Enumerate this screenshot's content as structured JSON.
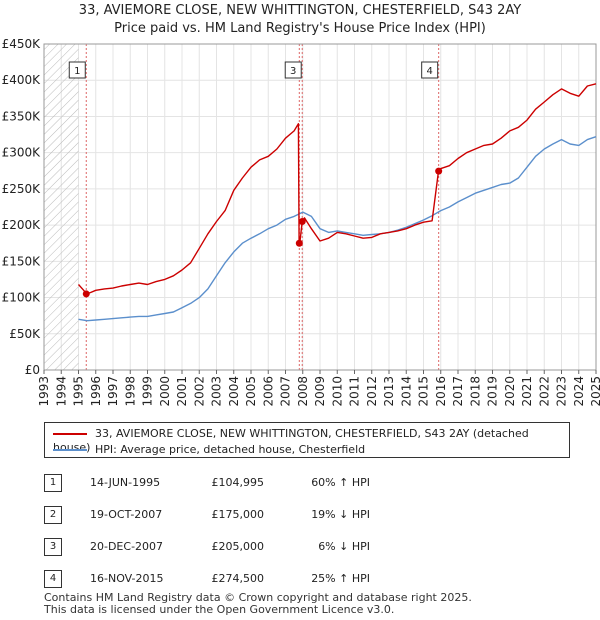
{
  "title_line1": "33, AVIEMORE CLOSE, NEW WHITTINGTON, CHESTERFIELD, S43 2AY",
  "title_line2": "Price paid vs. HM Land Registry's House Price Index (HPI)",
  "colors": {
    "property": "#cc0000",
    "hpi": "#5b8fcc",
    "hatch": "#bbbbbb",
    "vline": "#dd6666"
  },
  "chart_data": {
    "type": "line",
    "xlim": [
      1993,
      2025
    ],
    "ylim": [
      0,
      450000
    ],
    "y_ticks": [
      0,
      50000,
      100000,
      150000,
      200000,
      250000,
      300000,
      350000,
      400000,
      450000
    ],
    "y_tick_labels": [
      "£0",
      "£50K",
      "£100K",
      "£150K",
      "£200K",
      "£250K",
      "£300K",
      "£350K",
      "£400K",
      "£450K"
    ],
    "x_ticks": [
      1993,
      1994,
      1995,
      1996,
      1997,
      1998,
      1999,
      2000,
      2001,
      2002,
      2003,
      2004,
      2005,
      2006,
      2007,
      2008,
      2009,
      2010,
      2011,
      2012,
      2013,
      2014,
      2015,
      2016,
      2017,
      2018,
      2019,
      2020,
      2021,
      2022,
      2023,
      2024,
      2025
    ],
    "x_tick_labels": [
      "1993",
      "1994",
      "1995",
      "1996",
      "1997",
      "1998",
      "1999",
      "2000",
      "2001",
      "2002",
      "2003",
      "2004",
      "2005",
      "2006",
      "2007",
      "2008",
      "2009",
      "2010",
      "2011",
      "2012",
      "2013",
      "2014",
      "2015",
      "2016",
      "2017",
      "2018",
      "2019",
      "2020",
      "2021",
      "2022",
      "2023",
      "2024",
      "2025"
    ],
    "hatched_until": 1995.0,
    "series": [
      {
        "name": "33, AVIEMORE CLOSE, NEW WHITTINGTON, CHESTERFIELD, S43 2AY (detached house)",
        "x": [
          1995.0,
          1995.3,
          1995.45,
          1995.7,
          1996.0,
          1996.5,
          1997.0,
          1997.5,
          1998.0,
          1998.5,
          1999.0,
          1999.5,
          2000.0,
          2000.5,
          2001.0,
          2001.5,
          2002.0,
          2002.5,
          2003.0,
          2003.5,
          2004.0,
          2004.5,
          2005.0,
          2005.5,
          2006.0,
          2006.5,
          2007.0,
          2007.5,
          2007.75,
          2007.79,
          2007.85,
          2007.97,
          2008.1,
          2008.5,
          2009.0,
          2009.5,
          2010.0,
          2010.5,
          2011.0,
          2011.5,
          2012.0,
          2012.5,
          2013.0,
          2013.5,
          2014.0,
          2014.5,
          2015.0,
          2015.5,
          2015.87,
          2015.9,
          2016.0,
          2016.5,
          2017.0,
          2017.5,
          2018.0,
          2018.5,
          2019.0,
          2019.5,
          2020.0,
          2020.5,
          2021.0,
          2021.5,
          2022.0,
          2022.5,
          2023.0,
          2023.5,
          2024.0,
          2024.5,
          2025.0
        ],
        "y": [
          118000,
          110000,
          104995,
          107000,
          110000,
          112000,
          113000,
          116000,
          118000,
          120000,
          118000,
          122000,
          125000,
          130000,
          138000,
          148000,
          168000,
          188000,
          205000,
          220000,
          248000,
          265000,
          280000,
          290000,
          295000,
          305000,
          320000,
          330000,
          340000,
          175000,
          180000,
          205000,
          210000,
          195000,
          178000,
          182000,
          190000,
          188000,
          185000,
          182000,
          183000,
          188000,
          190000,
          192000,
          195000,
          200000,
          204000,
          206000,
          274500,
          276000,
          278000,
          282000,
          292000,
          300000,
          305000,
          310000,
          312000,
          320000,
          330000,
          335000,
          345000,
          360000,
          370000,
          380000,
          388000,
          382000,
          378000,
          392000,
          395000
        ]
      },
      {
        "name": "HPI: Average price, detached house, Chesterfield",
        "x": [
          1995.0,
          1995.5,
          1996.0,
          1996.5,
          1997.0,
          1997.5,
          1998.0,
          1998.5,
          1999.0,
          1999.5,
          2000.0,
          2000.5,
          2001.0,
          2001.5,
          2002.0,
          2002.5,
          2003.0,
          2003.5,
          2004.0,
          2004.5,
          2005.0,
          2005.5,
          2006.0,
          2006.5,
          2007.0,
          2007.5,
          2008.0,
          2008.5,
          2009.0,
          2009.5,
          2010.0,
          2010.5,
          2011.0,
          2011.5,
          2012.0,
          2012.5,
          2013.0,
          2013.5,
          2014.0,
          2014.5,
          2015.0,
          2015.5,
          2016.0,
          2016.5,
          2017.0,
          2017.5,
          2018.0,
          2018.5,
          2019.0,
          2019.5,
          2020.0,
          2020.5,
          2021.0,
          2021.5,
          2022.0,
          2022.5,
          2023.0,
          2023.5,
          2024.0,
          2024.5,
          2025.0
        ],
        "y": [
          70000,
          68000,
          69000,
          70000,
          71000,
          72000,
          73000,
          74000,
          74000,
          76000,
          78000,
          80000,
          86000,
          92000,
          100000,
          112000,
          130000,
          148000,
          163000,
          175000,
          182000,
          188000,
          195000,
          200000,
          208000,
          212000,
          218000,
          212000,
          195000,
          190000,
          192000,
          190000,
          188000,
          186000,
          187000,
          188000,
          190000,
          193000,
          197000,
          202000,
          207000,
          213000,
          220000,
          225000,
          232000,
          238000,
          244000,
          248000,
          252000,
          256000,
          258000,
          265000,
          280000,
          295000,
          305000,
          312000,
          318000,
          312000,
          310000,
          318000,
          322000
        ]
      }
    ],
    "sales": [
      {
        "label": "1",
        "x": 1995.45,
        "y": 104995
      },
      {
        "label": "2",
        "x": 2007.8,
        "y": 175000
      },
      {
        "label": "3",
        "x": 2007.97,
        "y": 205000
      },
      {
        "label": "4",
        "x": 2015.88,
        "y": 274500
      }
    ],
    "top_markers": [
      {
        "label": "1",
        "x": 1995.45
      },
      {
        "label": "3",
        "x": 2007.97
      },
      {
        "label": "4",
        "x": 2015.88
      }
    ]
  },
  "legend": {
    "property_label": "33, AVIEMORE CLOSE, NEW WHITTINGTON, CHESTERFIELD, S43 2AY (detached house)",
    "hpi_label": "HPI: Average price, detached house, Chesterfield"
  },
  "transactions": [
    {
      "num": "1",
      "date": "14-JUN-1995",
      "price": "£104,995",
      "hpi": "60% ↑ HPI"
    },
    {
      "num": "2",
      "date": "19-OCT-2007",
      "price": "£175,000",
      "hpi": "19% ↓ HPI"
    },
    {
      "num": "3",
      "date": "20-DEC-2007",
      "price": "£205,000",
      "hpi": "6% ↓ HPI"
    },
    {
      "num": "4",
      "date": "16-NOV-2015",
      "price": "£274,500",
      "hpi": "25% ↑ HPI"
    }
  ],
  "footer": {
    "line1": "Contains HM Land Registry data © Crown copyright and database right 2025.",
    "line2": "This data is licensed under the Open Government Licence v3.0."
  }
}
